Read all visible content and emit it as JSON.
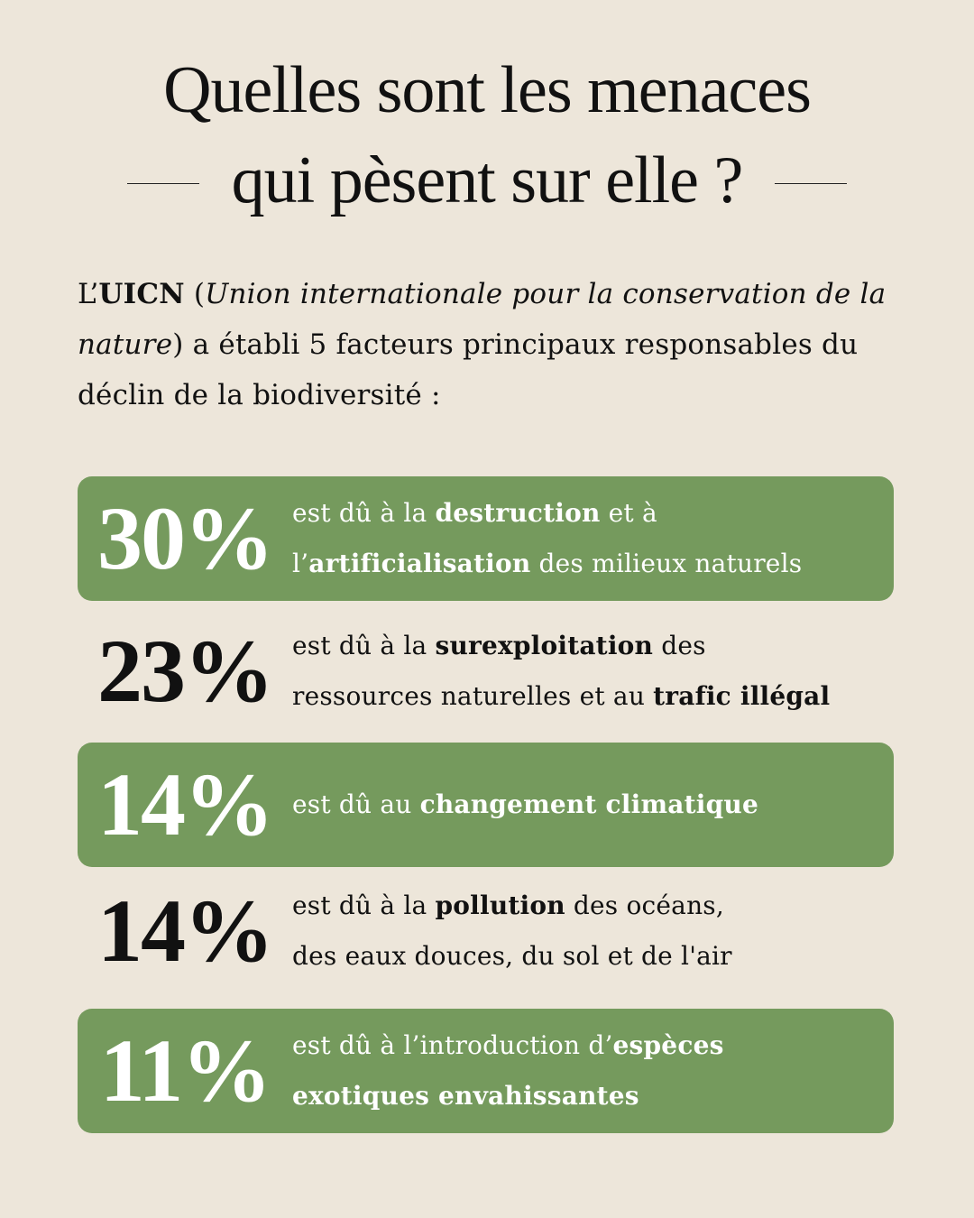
{
  "title": {
    "line1": "Quelles sont les menaces",
    "line2": "qui pèsent sur elle ?"
  },
  "intro": {
    "prefix": "L’",
    "acronym": "UICN",
    "paren_open": " (",
    "full_name": "Union internationale pour la conservation de la nature",
    "paren_close": ")",
    "rest": " a établi 5 facteurs principaux responsables du déclin de la biodiversité :"
  },
  "stats": [
    {
      "percent": "30%",
      "value": 30,
      "parts": [
        {
          "t": "est dû à la ",
          "b": false
        },
        {
          "t": "destruction",
          "b": true
        },
        {
          "t": " et à",
          "b": false
        },
        {
          "br": true
        },
        {
          "t": "l’",
          "b": false
        },
        {
          "t": "artificialisation",
          "b": true
        },
        {
          "t": " des milieux naturels",
          "b": false
        }
      ]
    },
    {
      "percent": "23%",
      "value": 23,
      "parts": [
        {
          "t": "est dû à la ",
          "b": false
        },
        {
          "t": "surexploitation",
          "b": true
        },
        {
          "t": " des",
          "b": false
        },
        {
          "br": true
        },
        {
          "t": "ressources naturelles et au ",
          "b": false
        },
        {
          "t": "trafic illégal",
          "b": true
        }
      ]
    },
    {
      "percent": "14%",
      "value": 14,
      "parts": [
        {
          "t": "est dû au ",
          "b": false
        },
        {
          "t": "changement climatique",
          "b": true
        }
      ]
    },
    {
      "percent": "14%",
      "value": 14,
      "parts": [
        {
          "t": "est dû à la ",
          "b": false
        },
        {
          "t": "pollution",
          "b": true
        },
        {
          "t": " des océans,",
          "b": false
        },
        {
          "br": true
        },
        {
          "t": "des eaux douces, du sol et de l'air",
          "b": false
        }
      ]
    },
    {
      "percent": "11%",
      "value": 11,
      "parts": [
        {
          "t": "est dû à l’introduction d’",
          "b": false
        },
        {
          "t": "espèces",
          "b": true
        },
        {
          "br": true
        },
        {
          "t": "exotiques envahissantes",
          "b": true
        }
      ]
    }
  ],
  "colors": {
    "background": "#ede6da",
    "accent_green": "#759a5d",
    "text_dark": "#111111",
    "text_on_green": "#ffffff"
  }
}
